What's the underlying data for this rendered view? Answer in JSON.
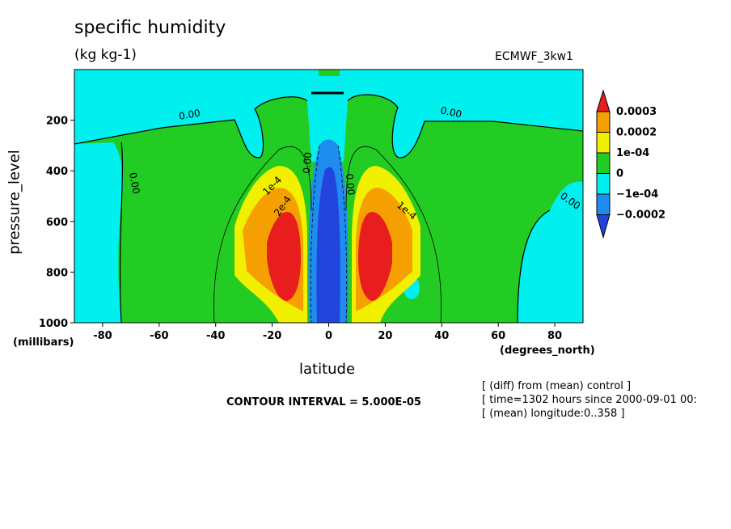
{
  "chart_data": {
    "type": "contour",
    "title": "specific humidity",
    "units": "(kg kg-1)",
    "dataset": "ECMWF_3kw1",
    "xlabel": "latitude",
    "ylabel": "pressure_level",
    "x_unit_label": "(degrees_north)",
    "y_unit_label": "(millibars)",
    "xlim": [
      -90,
      90
    ],
    "ylim": [
      1000,
      0
    ],
    "y_inverted": true,
    "x_ticks": [
      -80,
      -60,
      -40,
      -20,
      0,
      20,
      40,
      60,
      80
    ],
    "y_ticks": [
      200,
      400,
      600,
      800,
      1000
    ],
    "contour_interval": "CONTOUR INTERVAL = 5.000E-05",
    "contour_labels": [
      "0.00",
      "0.00",
      "0.00",
      "0.00",
      "0.00",
      "0.00",
      "1e-4",
      "2e-4",
      "1e-4"
    ],
    "legend": {
      "placement": "right",
      "labels": [
        "0.0003",
        "0.0002",
        "1e-04",
        "0",
        "−1e-04",
        "−0.0002"
      ],
      "colors": [
        "#e81e1e",
        "#f5a000",
        "#f0f000",
        "#22cc22",
        "#00f0f0",
        "#1f8cf0",
        "#2244dd"
      ]
    },
    "notes": [
      "[ (diff) from (mean) control ]",
      "[ time=1302 hours since 2000-09-01 00:",
      "[ (mean) longitude:0..358 ]"
    ]
  }
}
